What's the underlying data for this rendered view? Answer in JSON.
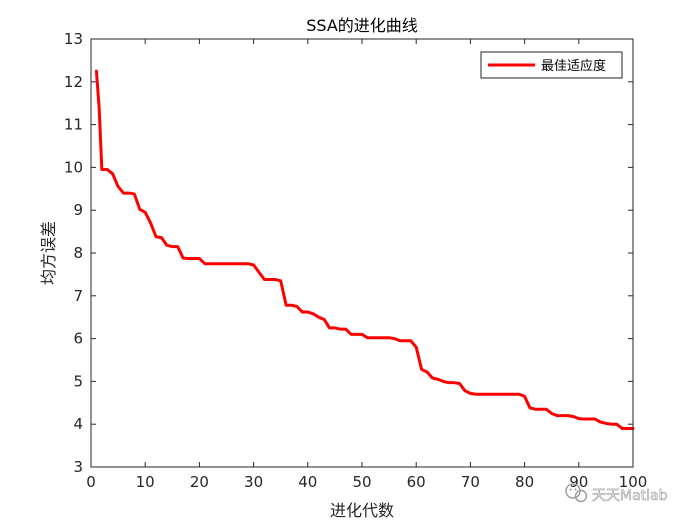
{
  "chart_data": {
    "type": "line",
    "title": "SSA的进化曲线",
    "xlabel": "进化代数",
    "ylabel": "均方误差",
    "xlim": [
      0,
      100
    ],
    "ylim": [
      3,
      13
    ],
    "xticks": [
      0,
      10,
      20,
      30,
      40,
      50,
      60,
      70,
      80,
      90,
      100
    ],
    "yticks": [
      3,
      4,
      5,
      6,
      7,
      8,
      9,
      10,
      11,
      12,
      13
    ],
    "grid": false,
    "legend_position": "top-right",
    "series": [
      {
        "name": "最佳适应度",
        "color": "#ff0000",
        "x": [
          1,
          1.5,
          2,
          3,
          4,
          5,
          6,
          7,
          8,
          9,
          10,
          11,
          12,
          13,
          14,
          15,
          16,
          17,
          18,
          19,
          20,
          21,
          22,
          23,
          24,
          25,
          26,
          27,
          28,
          29,
          30,
          31,
          32,
          33,
          34,
          35,
          36,
          37,
          38,
          39,
          40,
          41,
          42,
          43,
          44,
          45,
          46,
          47,
          48,
          49,
          50,
          51,
          52,
          53,
          54,
          55,
          56,
          57,
          58,
          59,
          60,
          61,
          62,
          63,
          64,
          65,
          66,
          67,
          68,
          69,
          70,
          71,
          72,
          73,
          74,
          75,
          76,
          77,
          78,
          79,
          80,
          81,
          82,
          83,
          84,
          85,
          86,
          87,
          88,
          89,
          90,
          91,
          92,
          93,
          94,
          95,
          96,
          97,
          98,
          99,
          100
        ],
        "y": [
          12.25,
          11.4,
          9.95,
          9.95,
          9.85,
          9.55,
          9.4,
          9.4,
          9.38,
          9.02,
          8.95,
          8.7,
          8.38,
          8.36,
          8.18,
          8.15,
          8.15,
          7.88,
          7.87,
          7.87,
          7.87,
          7.75,
          7.75,
          7.75,
          7.75,
          7.75,
          7.75,
          7.75,
          7.75,
          7.75,
          7.72,
          7.55,
          7.38,
          7.38,
          7.38,
          7.35,
          6.78,
          6.78,
          6.75,
          6.62,
          6.62,
          6.58,
          6.5,
          6.45,
          6.25,
          6.25,
          6.22,
          6.22,
          6.1,
          6.1,
          6.1,
          6.02,
          6.02,
          6.02,
          6.02,
          6.02,
          6.0,
          5.95,
          5.95,
          5.95,
          5.8,
          5.28,
          5.22,
          5.08,
          5.05,
          5.0,
          4.97,
          4.97,
          4.95,
          4.78,
          4.72,
          4.7,
          4.7,
          4.7,
          4.7,
          4.7,
          4.7,
          4.7,
          4.7,
          4.7,
          4.65,
          4.38,
          4.35,
          4.35,
          4.35,
          4.25,
          4.2,
          4.2,
          4.2,
          4.18,
          4.13,
          4.12,
          4.12,
          4.12,
          4.05,
          4.02,
          4.0,
          4.0,
          3.9,
          3.9,
          3.9
        ]
      }
    ]
  },
  "watermark": {
    "text": "天天Matlab",
    "icon": "wechat-icon"
  }
}
